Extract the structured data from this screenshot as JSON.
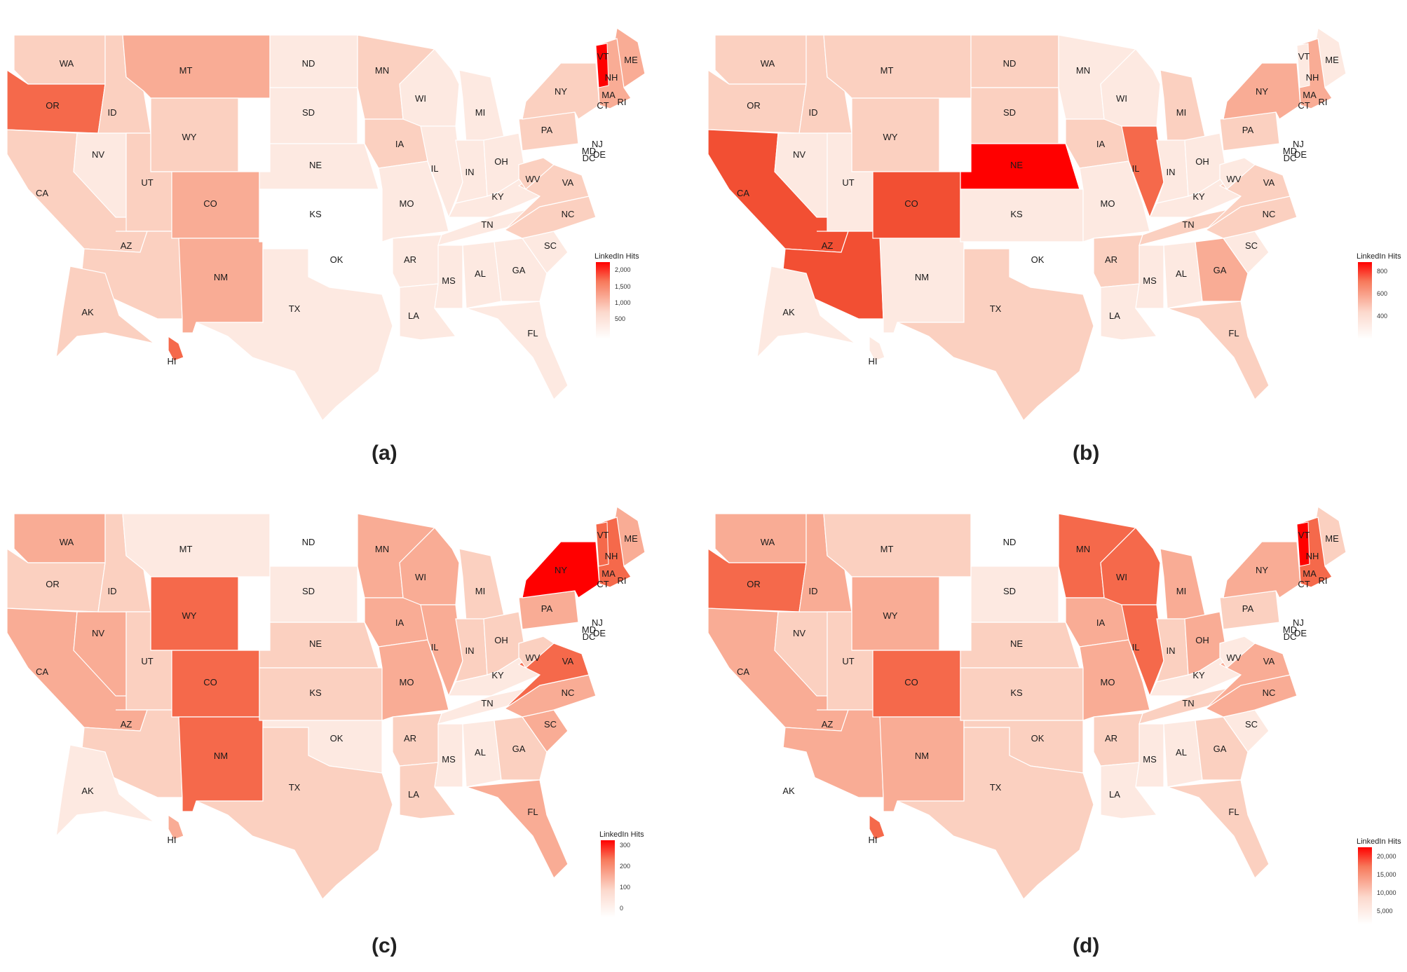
{
  "figure": {
    "panels": [
      {
        "caption": "(a)",
        "legend_title": "LinkedIn Hits",
        "legend_ticks": [
          "2,000",
          "1,500",
          "1,000",
          "500"
        ],
        "levels": {
          "WA": 2,
          "OR": 4,
          "CA": 2,
          "NV": 1,
          "ID": 2,
          "MT": 3,
          "WY": 2,
          "UT": 2,
          "AZ": 2,
          "CO": 3,
          "NM": 3,
          "ND": 1,
          "SD": 1,
          "NE": 1,
          "KS": 0,
          "OK": 0,
          "TX": 1,
          "MN": 2,
          "IA": 2,
          "MO": 1,
          "AR": 1,
          "LA": 1,
          "WI": 1,
          "IL": 1,
          "MI": 1,
          "IN": 1,
          "OH": 1,
          "KY": 1,
          "TN": 1,
          "MS": 1,
          "AL": 1,
          "GA": 1,
          "FL": 1,
          "SC": 1,
          "NC": 2,
          "VA": 2,
          "WV": 2,
          "PA": 2,
          "NY": 2,
          "ME": 3,
          "AK": 2,
          "HI": 4,
          "NE_REGION": 3,
          "VT": 6
        }
      },
      {
        "caption": "(b)",
        "legend_title": "LinkedIn Hits",
        "legend_ticks": [
          "800",
          "600",
          "400"
        ],
        "levels": {
          "WA": 2,
          "OR": 2,
          "CA": 5,
          "NV": 1,
          "ID": 2,
          "MT": 2,
          "WY": 2,
          "UT": 1,
          "AZ": 5,
          "CO": 5,
          "NM": 1,
          "ND": 2,
          "SD": 2,
          "NE": 6,
          "KS": 1,
          "OK": 0,
          "TX": 2,
          "MN": 1,
          "IA": 2,
          "MO": 1,
          "AR": 2,
          "LA": 1,
          "WI": 1,
          "IL": 4,
          "MI": 2,
          "IN": 1,
          "OH": 1,
          "KY": 1,
          "TN": 2,
          "MS": 1,
          "AL": 1,
          "GA": 3,
          "FL": 2,
          "SC": 1,
          "NC": 2,
          "VA": 2,
          "WV": 1,
          "PA": 2,
          "NY": 3,
          "ME": 1,
          "AK": 1,
          "HI": 1,
          "NE_REGION": 3,
          "VT": 1
        }
      },
      {
        "caption": "(c)",
        "legend_title": "LinkedIn Hits",
        "legend_ticks": [
          "300",
          "200",
          "100",
          "0"
        ],
        "levels": {
          "WA": 3,
          "OR": 2,
          "CA": 3,
          "NV": 3,
          "ID": 2,
          "MT": 1,
          "WY": 4,
          "UT": 2,
          "AZ": 2,
          "CO": 4,
          "NM": 4,
          "ND": 0,
          "SD": 1,
          "NE": 2,
          "KS": 2,
          "OK": 1,
          "TX": 2,
          "MN": 3,
          "IA": 3,
          "MO": 3,
          "AR": 2,
          "LA": 2,
          "WI": 3,
          "IL": 3,
          "MI": 2,
          "IN": 2,
          "OH": 2,
          "KY": 1,
          "TN": 1,
          "MS": 1,
          "AL": 1,
          "GA": 2,
          "FL": 3,
          "SC": 3,
          "NC": 3,
          "VA": 4,
          "WV": 2,
          "PA": 3,
          "NY": 6,
          "ME": 3,
          "AK": 1,
          "HI": 3,
          "NE_REGION": 4,
          "VT": 4
        }
      },
      {
        "caption": "(d)",
        "legend_title": "LinkedIn Hits",
        "legend_ticks": [
          "20,000",
          "15,000",
          "10,000",
          "5,000"
        ],
        "levels": {
          "WA": 3,
          "OR": 4,
          "CA": 3,
          "NV": 2,
          "ID": 3,
          "MT": 2,
          "WY": 3,
          "UT": 2,
          "AZ": 3,
          "CO": 4,
          "NM": 3,
          "ND": 0,
          "SD": 1,
          "NE": 2,
          "KS": 2,
          "OK": 2,
          "TX": 2,
          "MN": 4,
          "IA": 3,
          "MO": 3,
          "AR": 2,
          "LA": 1,
          "WI": 4,
          "IL": 4,
          "MI": 3,
          "IN": 2,
          "OH": 3,
          "KY": 1,
          "TN": 2,
          "MS": 1,
          "AL": 1,
          "GA": 2,
          "FL": 2,
          "SC": 1,
          "NC": 3,
          "VA": 3,
          "WV": 1,
          "PA": 2,
          "NY": 3,
          "ME": 2,
          "AK": 0,
          "HI": 4,
          "NE_REGION": 4,
          "VT": 6
        }
      }
    ],
    "palette": [
      "#ffffff",
      "#fde9e1",
      "#fbd0c0",
      "#f9ac95",
      "#f5694b",
      "#f24f33",
      "#ff0000"
    ],
    "state_labels": {
      "WA": "WA",
      "OR": "OR",
      "CA": "CA",
      "NV": "NV",
      "ID": "ID",
      "MT": "MT",
      "WY": "WY",
      "UT": "UT",
      "AZ": "AZ",
      "CO": "CO",
      "NM": "NM",
      "ND": "ND",
      "SD": "SD",
      "NE": "NE",
      "KS": "KS",
      "OK": "OK",
      "TX": "TX",
      "MN": "MN",
      "IA": "IA",
      "MO": "MO",
      "AR": "AR",
      "LA": "LA",
      "WI": "WI",
      "IL": "IL",
      "MI": "MI",
      "IN": "IN",
      "OH": "OH",
      "KY": "KY",
      "TN": "TN",
      "MS": "MS",
      "AL": "AL",
      "GA": "GA",
      "FL": "FL",
      "SC": "SC",
      "NC": "NC",
      "VA": "VA",
      "WV": "WV",
      "PA": "PA",
      "NY": "NY",
      "ME": "ME",
      "VT": "VT",
      "NH": "NH",
      "MA": "MA",
      "CT": "CT",
      "RI": "RI",
      "NJ": "NJ",
      "DE": "DE",
      "MD": "MD",
      "DC": "DC",
      "AK": "AK",
      "HI": "HI"
    }
  }
}
